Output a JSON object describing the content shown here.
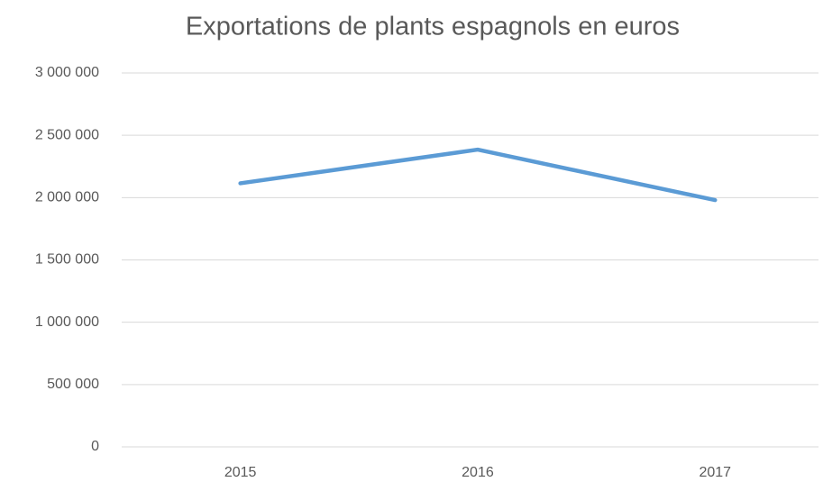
{
  "chart_data": {
    "type": "line",
    "title": "Exportations de plants espagnols en euros",
    "categories": [
      "2015",
      "2016",
      "2017"
    ],
    "values": [
      2115000,
      2385000,
      1980000
    ],
    "color": "#5b9bd5",
    "ylim": [
      0,
      3000000
    ],
    "yticks": [
      0,
      {
        "value": 500000,
        "label": "500 000"
      },
      {
        "value": 1000000,
        "label": "1 000 000"
      },
      {
        "value": 1500000,
        "label": "1 500 000"
      },
      {
        "value": 2000000,
        "label": "2 000 000"
      },
      {
        "value": 2500000,
        "label": "2 500 000"
      },
      {
        "value": 3000000,
        "label": "3 000 000"
      }
    ],
    "grid": true
  }
}
